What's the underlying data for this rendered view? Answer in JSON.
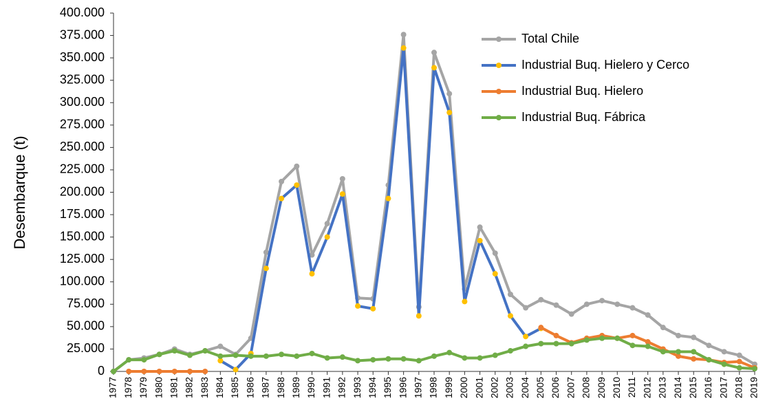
{
  "chart_data": {
    "type": "line",
    "y_label": "Desembarque (t)",
    "categories": [
      "1977",
      "1978",
      "1979",
      "1980",
      "1981",
      "1982",
      "1983",
      "1984",
      "1985",
      "1986",
      "1987",
      "1988",
      "1989",
      "1990",
      "1991",
      "1992",
      "1993",
      "1994",
      "1995",
      "1996",
      "1997",
      "1998",
      "1999",
      "2000",
      "2001",
      "2002",
      "2003",
      "2004",
      "2005",
      "2006",
      "2007",
      "2008",
      "2009",
      "2010",
      "2011",
      "2012",
      "2013",
      "2014",
      "2015",
      "2016",
      "2017",
      "2018",
      "2019"
    ],
    "series": [
      {
        "name": "Total Chile",
        "color": "#a5a5a5",
        "marker_color": "#a5a5a5",
        "values": [
          0,
          13000,
          15000,
          19000,
          25000,
          19000,
          23000,
          28000,
          19000,
          37000,
          133000,
          212000,
          229000,
          130000,
          165000,
          215000,
          82000,
          81000,
          208000,
          376000,
          72000,
          356000,
          310000,
          92000,
          161000,
          132000,
          86000,
          71000,
          80000,
          74000,
          64000,
          75000,
          79000,
          75000,
          71000,
          63000,
          49000,
          40000,
          38000,
          29000,
          22000,
          18000,
          8000
        ]
      },
      {
        "name": "Industrial Buq. Hielero y Cerco",
        "color": "#4472c4",
        "marker_color": "#ffc000",
        "values": [
          null,
          null,
          null,
          null,
          null,
          null,
          null,
          12000,
          2000,
          20000,
          115000,
          193000,
          208000,
          109000,
          150000,
          198000,
          73000,
          70000,
          193000,
          361000,
          62000,
          339000,
          289000,
          78000,
          146000,
          109000,
          62000,
          39000,
          48000,
          null,
          null,
          null,
          null,
          null,
          null,
          null,
          null,
          null,
          null,
          null,
          null,
          null,
          null
        ]
      },
      {
        "name": "Industrial Buq. Hielero",
        "color": "#ed7d31",
        "marker_color": "#ed7d31",
        "values": [
          null,
          0,
          0,
          0,
          0,
          0,
          0,
          null,
          null,
          null,
          null,
          null,
          null,
          null,
          null,
          null,
          null,
          null,
          null,
          null,
          null,
          null,
          null,
          null,
          null,
          null,
          null,
          null,
          49000,
          40000,
          32000,
          37000,
          40000,
          37000,
          40000,
          33000,
          25000,
          17000,
          14000,
          13000,
          10000,
          11000,
          4000
        ]
      },
      {
        "name": "Industrial Buq. Fábrica",
        "color": "#70ad47",
        "marker_color": "#70ad47",
        "values": [
          0,
          13000,
          13000,
          19000,
          23000,
          18000,
          23000,
          17000,
          18000,
          17000,
          17000,
          19000,
          17000,
          20000,
          15000,
          16000,
          12000,
          13000,
          14000,
          14000,
          12000,
          17000,
          21000,
          15000,
          15000,
          18000,
          23000,
          28000,
          31000,
          31000,
          31000,
          35000,
          37000,
          37000,
          29000,
          28000,
          22000,
          22000,
          22000,
          13000,
          8000,
          4000,
          3000
        ]
      }
    ],
    "ylim": [
      0,
      400000
    ],
    "yticks": [
      0,
      {
        "value": 25000,
        "label": "25.000"
      },
      {
        "value": 50000,
        "label": "50.000"
      },
      {
        "value": 75000,
        "label": "75.000"
      },
      {
        "value": 100000,
        "label": "100.000"
      },
      {
        "value": 125000,
        "label": "125.000"
      },
      {
        "value": 150000,
        "label": "150.000"
      },
      {
        "value": 175000,
        "label": "175.000"
      },
      {
        "value": 200000,
        "label": "200.000"
      },
      {
        "value": 225000,
        "label": "225.000"
      },
      {
        "value": 250000,
        "label": "250.000"
      },
      {
        "value": 275000,
        "label": "275.000"
      },
      {
        "value": 300000,
        "label": "300.000"
      },
      {
        "value": 325000,
        "label": "325.000"
      },
      {
        "value": 350000,
        "label": "350.000"
      },
      {
        "value": 375000,
        "label": "375.000"
      },
      {
        "value": 400000,
        "label": "400.000"
      }
    ],
    "grid": false,
    "legend": "upper right"
  }
}
